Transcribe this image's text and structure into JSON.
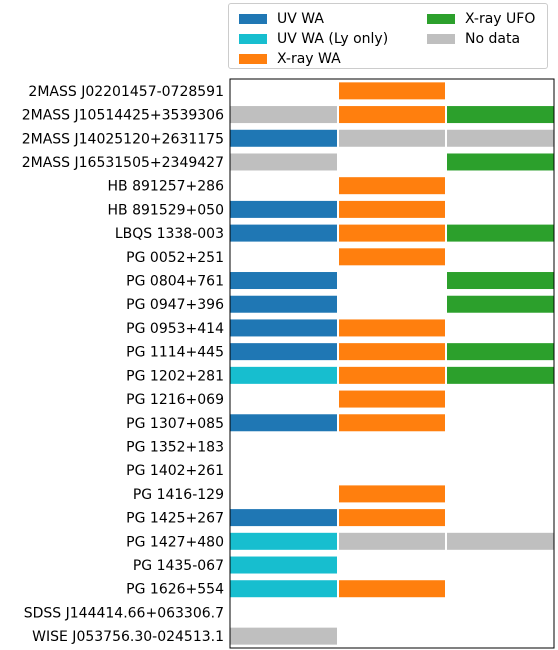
{
  "chart_data": {
    "type": "table",
    "columns": [
      "UV WA",
      "X-ray WA",
      "X-ray UFO"
    ],
    "legend": [
      {
        "label": "UV WA",
        "color": "#1f77b4"
      },
      {
        "label": "UV WA (Ly only)",
        "color": "#17becf"
      },
      {
        "label": "X-ray WA",
        "color": "#ff7f0e"
      },
      {
        "label": "X-ray UFO",
        "color": "#2ca02c"
      },
      {
        "label": "No data",
        "color": "#bfbfbf"
      }
    ],
    "colors": {
      "uv": "#1f77b4",
      "uv_ly": "#17becf",
      "xwa": "#ff7f0e",
      "ufo": "#2ca02c",
      "nodata": "#bfbfbf"
    },
    "rows": [
      {
        "name": "2MASS J02201457-0728591",
        "cells": [
          null,
          "xwa",
          null
        ]
      },
      {
        "name": "2MASS J10514425+3539306",
        "cells": [
          "nodata",
          "xwa",
          "ufo"
        ]
      },
      {
        "name": "2MASS J14025120+2631175",
        "cells": [
          "uv",
          "nodata",
          "nodata"
        ]
      },
      {
        "name": "2MASS J16531505+2349427",
        "cells": [
          "nodata",
          null,
          "ufo"
        ]
      },
      {
        "name": "HB 891257+286",
        "cells": [
          null,
          "xwa",
          null
        ]
      },
      {
        "name": "HB 891529+050",
        "cells": [
          "uv",
          "xwa",
          null
        ]
      },
      {
        "name": "LBQS 1338-003",
        "cells": [
          "uv",
          "xwa",
          "ufo"
        ]
      },
      {
        "name": "PG 0052+251",
        "cells": [
          null,
          "xwa",
          null
        ]
      },
      {
        "name": "PG 0804+761",
        "cells": [
          "uv",
          null,
          "ufo"
        ]
      },
      {
        "name": "PG 0947+396",
        "cells": [
          "uv",
          null,
          "ufo"
        ]
      },
      {
        "name": "PG 0953+414",
        "cells": [
          "uv",
          "xwa",
          null
        ]
      },
      {
        "name": "PG 1114+445",
        "cells": [
          "uv",
          "xwa",
          "ufo"
        ]
      },
      {
        "name": "PG 1202+281",
        "cells": [
          "uv_ly",
          "xwa",
          "ufo"
        ]
      },
      {
        "name": "PG 1216+069",
        "cells": [
          null,
          "xwa",
          null
        ]
      },
      {
        "name": "PG 1307+085",
        "cells": [
          "uv",
          "xwa",
          null
        ]
      },
      {
        "name": "PG 1352+183",
        "cells": [
          null,
          null,
          null
        ]
      },
      {
        "name": "PG 1402+261",
        "cells": [
          null,
          null,
          null
        ]
      },
      {
        "name": "PG 1416-129",
        "cells": [
          null,
          "xwa",
          null
        ]
      },
      {
        "name": "PG 1425+267",
        "cells": [
          "uv",
          "xwa",
          null
        ]
      },
      {
        "name": "PG 1427+480",
        "cells": [
          "uv_ly",
          "nodata",
          "nodata"
        ]
      },
      {
        "name": "PG 1435-067",
        "cells": [
          "uv_ly",
          null,
          null
        ]
      },
      {
        "name": "PG 1626+554",
        "cells": [
          "uv_ly",
          "xwa",
          null
        ]
      },
      {
        "name": "SDSS J144414.66+063306.7",
        "cells": [
          null,
          null,
          null
        ]
      },
      {
        "name": "WISE J053756.30-024513.1",
        "cells": [
          "nodata",
          null,
          null
        ]
      }
    ]
  }
}
